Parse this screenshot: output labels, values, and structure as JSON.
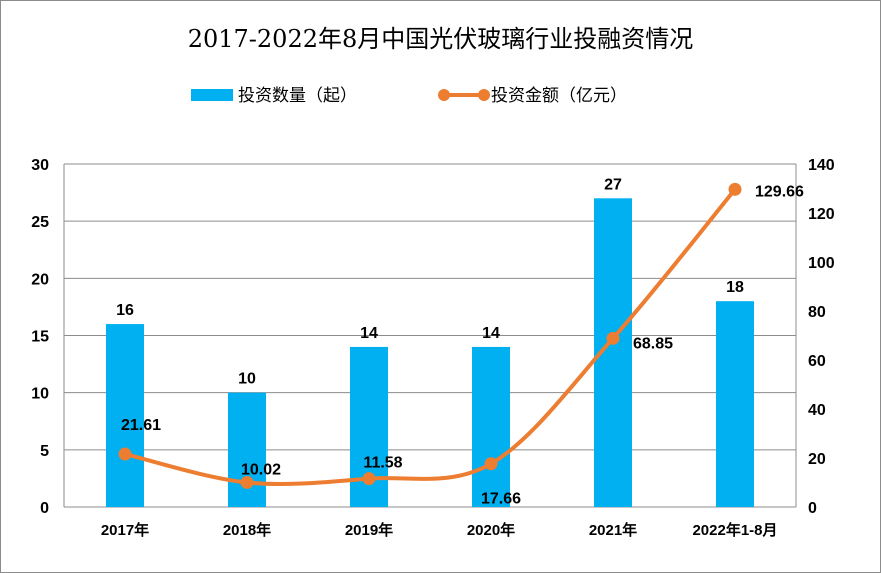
{
  "chart_data": {
    "type": "bar+line",
    "title": "2017-2022年8月中国光伏玻璃行业投融资情况",
    "categories": [
      "2017年",
      "2018年",
      "2019年",
      "2020年",
      "2021年",
      "2022年1-8月"
    ],
    "series": [
      {
        "name": "投资数量（起）",
        "type": "bar",
        "axis": "left",
        "color": "#00b0f0",
        "values": [
          16,
          10,
          14,
          14,
          27,
          18
        ]
      },
      {
        "name": "投资金额（亿元）",
        "type": "line",
        "axis": "right",
        "color": "#ed7d31",
        "smooth": true,
        "values": [
          21.61,
          10.02,
          11.58,
          17.66,
          68.85,
          129.66
        ]
      }
    ],
    "y_left": {
      "range": [
        0,
        30
      ],
      "ticks": [
        0,
        5,
        10,
        15,
        20,
        25,
        30
      ]
    },
    "y_right": {
      "range": [
        0,
        140
      ],
      "ticks": [
        0,
        20,
        40,
        60,
        80,
        100,
        120,
        140
      ]
    },
    "grid": true,
    "legend": "top"
  }
}
